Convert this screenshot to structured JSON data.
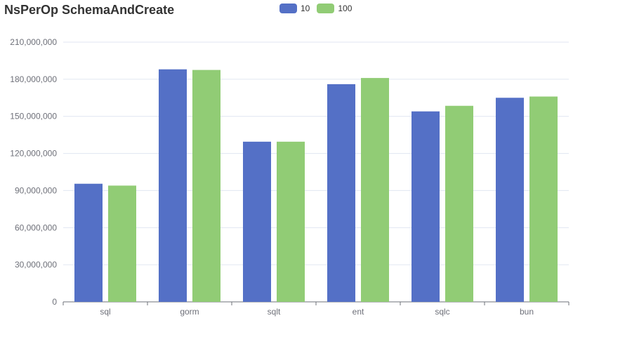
{
  "chart_data": {
    "type": "bar",
    "title": "NsPerOp SchemaAndCreate",
    "categories": [
      "sql",
      "gorm",
      "sqlt",
      "ent",
      "sqlc",
      "bun"
    ],
    "series": [
      {
        "name": "10",
        "color": "#5470c6",
        "values": [
          95500000,
          188000000,
          129500000,
          176000000,
          154000000,
          165000000
        ]
      },
      {
        "name": "100",
        "color": "#91cc75",
        "values": [
          94000000,
          187500000,
          129500000,
          181000000,
          158500000,
          166000000
        ]
      }
    ],
    "yticks": [
      "0",
      "30,000,000",
      "60,000,000",
      "90,000,000",
      "120,000,000",
      "150,000,000",
      "180,000,000",
      "210,000,000"
    ],
    "ylim": [
      0,
      210000000
    ],
    "grid": true,
    "legend_position": "top-center"
  }
}
